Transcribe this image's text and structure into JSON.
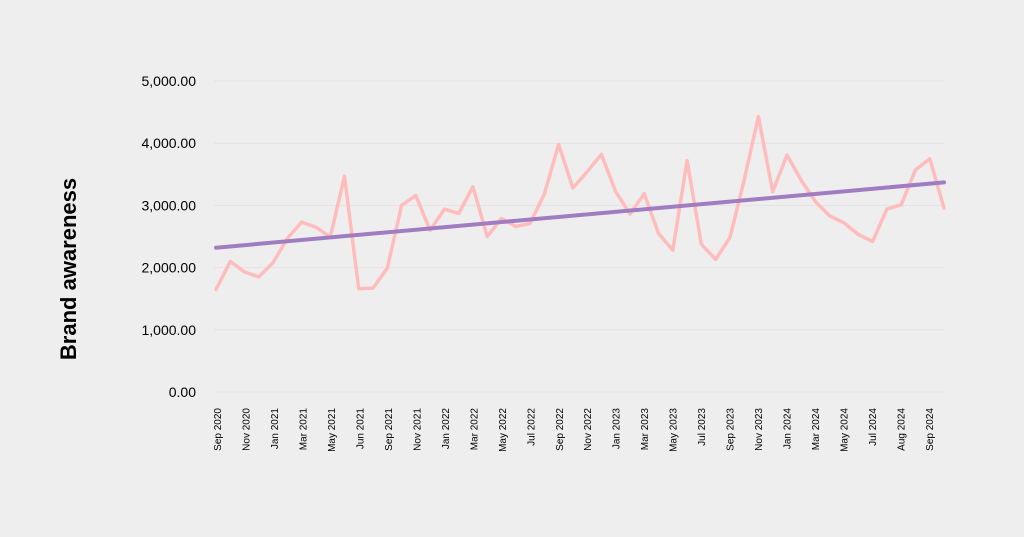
{
  "chart_data": {
    "type": "line",
    "title": "",
    "ylabel": "Brand awareness",
    "xlabel": "",
    "ylim": [
      0,
      5000
    ],
    "yticks": [
      0,
      1000,
      2000,
      3000,
      4000,
      5000
    ],
    "ytick_labels": [
      "0.00",
      "1,000.00",
      "2,000.00",
      "3,000.00",
      "4,000.00",
      "5,000.00"
    ],
    "x_tick_labels": [
      "Sep 2020",
      "Nov 2020",
      "Jan 2021",
      "Mar 2021",
      "May 2021",
      "Jun 2021",
      "Sep 2021",
      "Nov 2021",
      "Jan 2022",
      "Mar 2022",
      "May 2022",
      "Jul 2022",
      "Sep 2022",
      "Nov 2022",
      "Jan 2023",
      "Mar 2023",
      "May 2023",
      "Jul 2023",
      "Sep 2023",
      "Nov 2023",
      "Jan 2024",
      "Mar 2024",
      "May 2024",
      "Jul 2024",
      "Aug 2024",
      "Sep 2024"
    ],
    "grid": true,
    "colors": {
      "series": "#ffbcbc",
      "trend": "#a07cc0",
      "grid": "#e4e2e2",
      "background": "#efeeee"
    },
    "series": [
      {
        "values": [
          1650,
          2100,
          1930,
          1850,
          2080,
          2470,
          2730,
          2650,
          2490,
          3470,
          1660,
          1670,
          1990,
          3000,
          3160,
          2600,
          2940,
          2870,
          3300,
          2500,
          2790,
          2660,
          2710,
          3180,
          3980,
          3280,
          3540,
          3820,
          3220,
          2860,
          3190,
          2550,
          2280,
          3720,
          2380,
          2130,
          2480,
          3410,
          4430,
          3220,
          3810,
          3400,
          3060,
          2830,
          2720,
          2530,
          2420,
          2940,
          3010,
          3570,
          3750,
          2960
        ]
      },
      {
        "type": "trend",
        "values": [
          2320,
          3370
        ]
      }
    ]
  }
}
